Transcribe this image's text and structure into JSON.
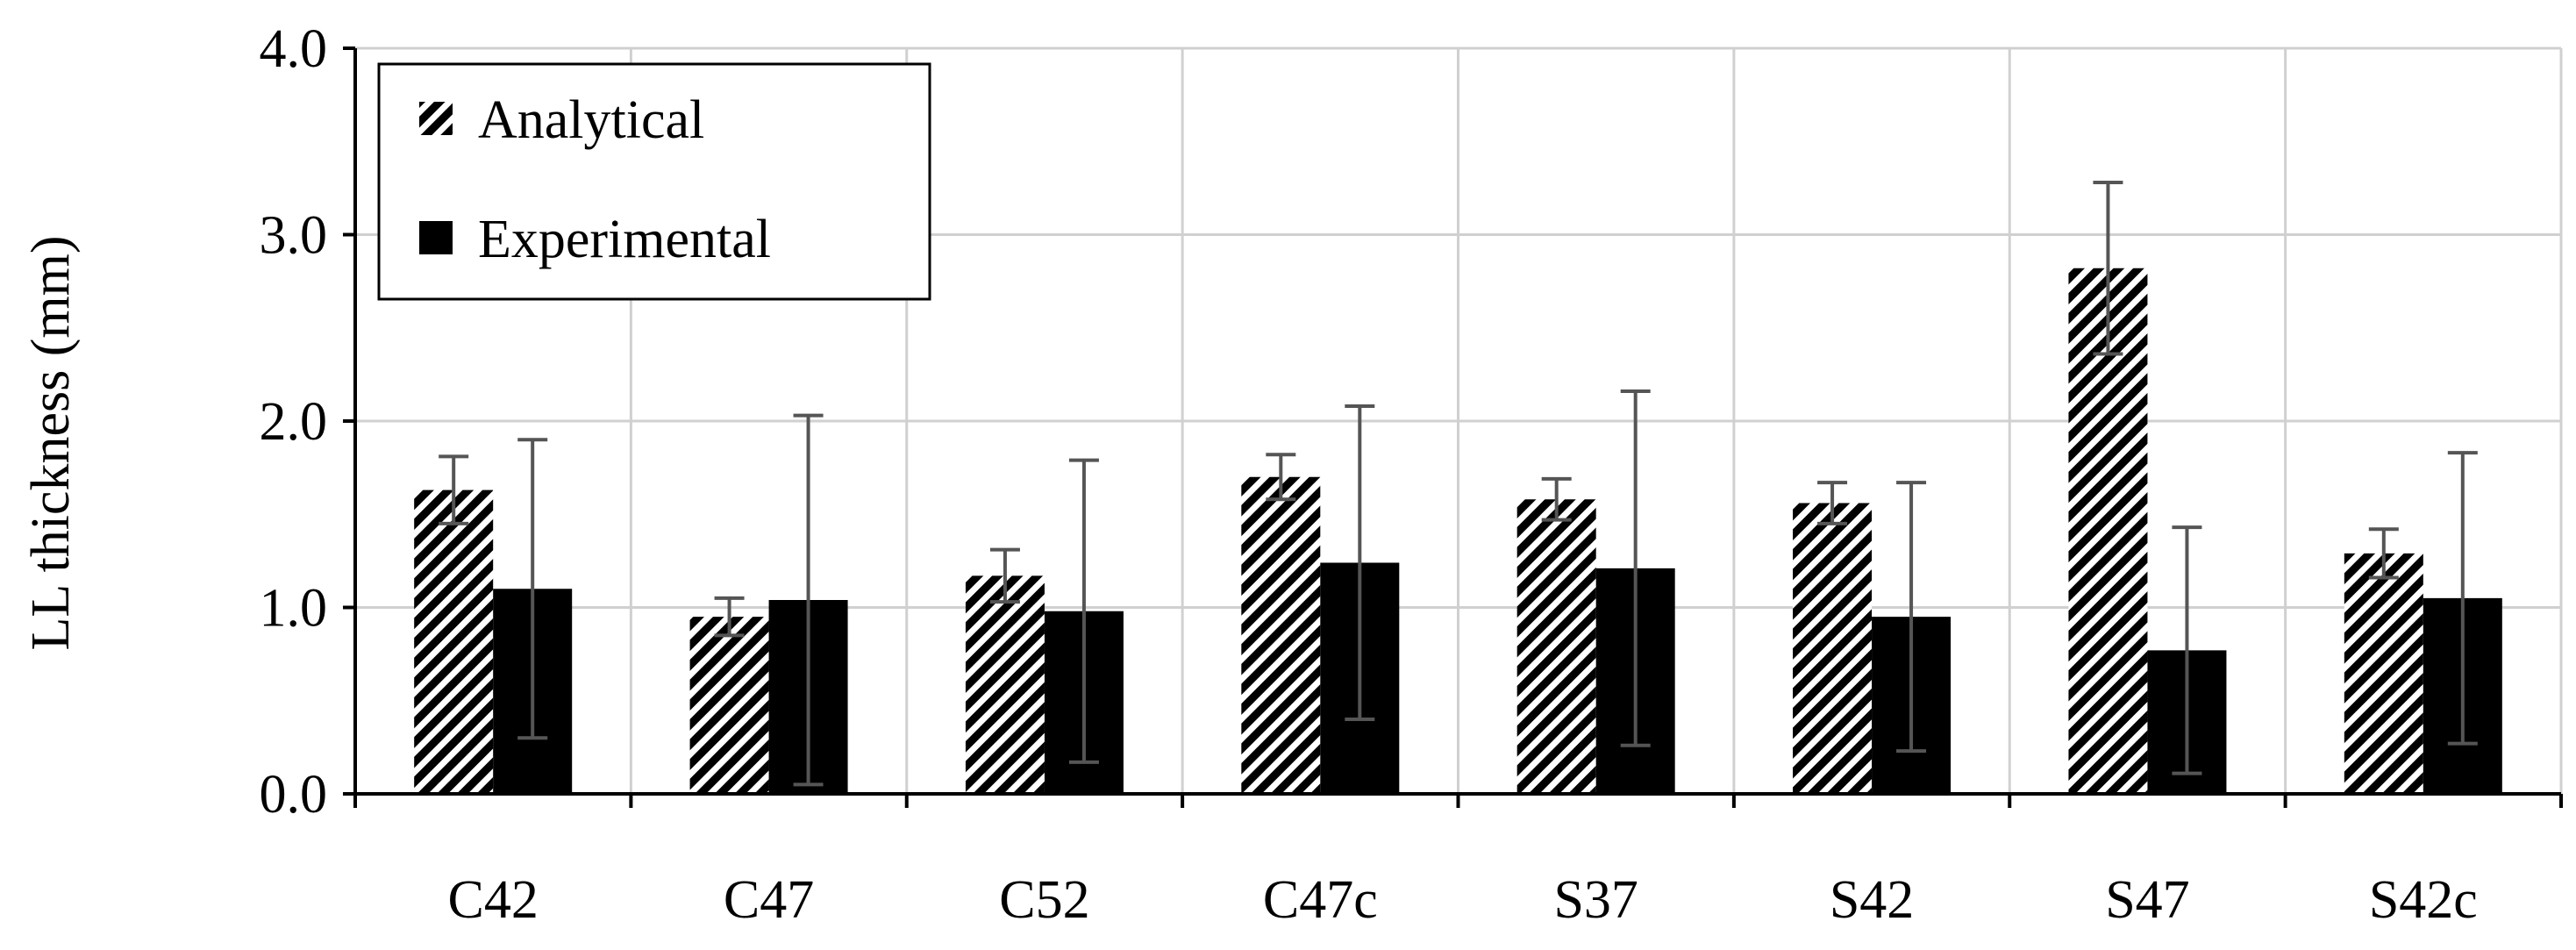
{
  "chart_data": {
    "type": "bar",
    "title": "",
    "xlabel": "",
    "ylabel": "LL thickness (mm)",
    "ylim": [
      0,
      4
    ],
    "yticks": [
      "0.0",
      "1.0",
      "2.0",
      "3.0",
      "4.0"
    ],
    "grid": true,
    "legend_position": "top-left",
    "categories": [
      "C42",
      "C47",
      "C52",
      "C47c",
      "S37",
      "S42",
      "S47",
      "S42c"
    ],
    "series": [
      {
        "name": "Analytical",
        "pattern": "diagonal-hatch",
        "values": [
          1.63,
          0.95,
          1.17,
          1.7,
          1.58,
          1.56,
          2.82,
          1.29
        ],
        "error": [
          0.18,
          0.1,
          0.14,
          0.12,
          0.11,
          0.11,
          0.46,
          0.13
        ]
      },
      {
        "name": "Experimental",
        "pattern": "solid",
        "values": [
          1.1,
          1.04,
          0.98,
          1.24,
          1.21,
          0.95,
          0.77,
          1.05
        ],
        "error": [
          0.8,
          0.99,
          0.81,
          0.84,
          0.95,
          0.72,
          0.66,
          0.78
        ]
      }
    ]
  },
  "colors": {
    "bar": "#000000",
    "grid": "#d0d0d0",
    "axis": "#000000",
    "error": "#555555",
    "background": "#ffffff"
  }
}
